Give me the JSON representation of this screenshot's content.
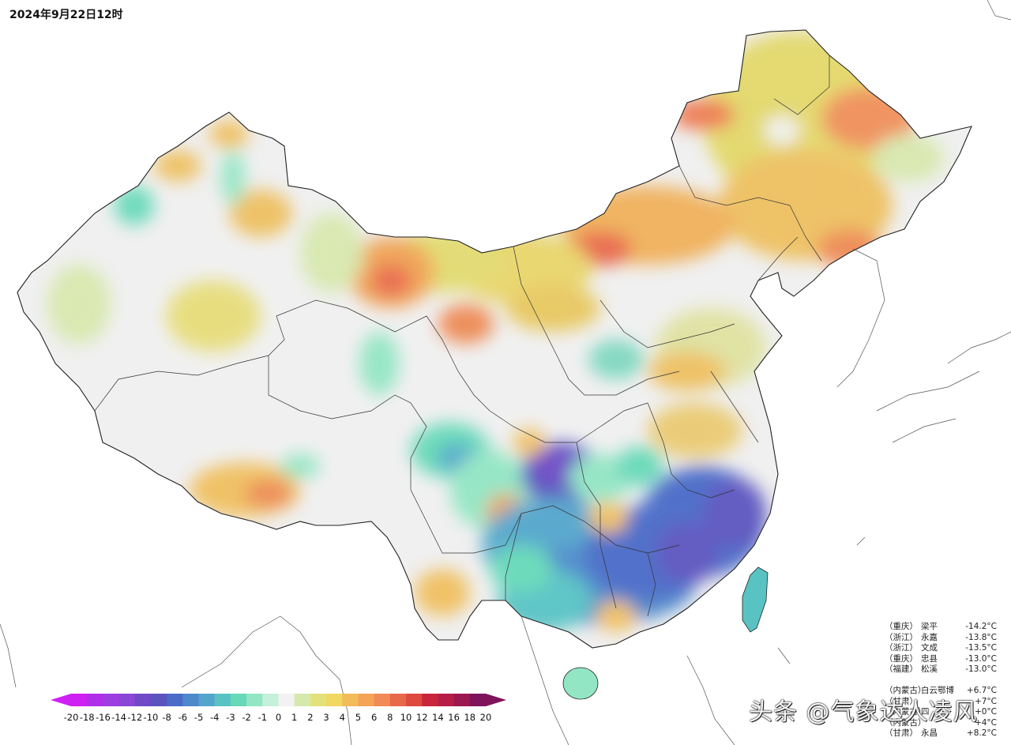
{
  "header": {
    "timestamp": "2024年9月22日12时"
  },
  "legend": {
    "ticks": [
      "-20",
      "-18",
      "-16",
      "-14",
      "-12",
      "-10",
      "-8",
      "-6",
      "-5",
      "-4",
      "-3",
      "-2",
      "-1",
      "0",
      "1",
      "2",
      "3",
      "4",
      "5",
      "6",
      "8",
      "10",
      "12",
      "14",
      "16",
      "18",
      "20"
    ],
    "colors": [
      "#cf20f4",
      "#b12ee9",
      "#9d3ee0",
      "#8a46d6",
      "#6f49c6",
      "#5b54bf",
      "#4a6bc8",
      "#4e89cc",
      "#52a6cc",
      "#59c3c4",
      "#66d9b8",
      "#93e6c4",
      "#c5f0d9",
      "#f2f2f2",
      "#d7e8ad",
      "#e3e27a",
      "#f0d862",
      "#f2bc58",
      "#f4a456",
      "#f18a55",
      "#e8684b",
      "#de4940",
      "#c8263a",
      "#b51e46",
      "#9c1850",
      "#801359"
    ]
  },
  "stats_low": [
    {
      "prov": "（重庆）",
      "name": "梁平",
      "val": "-14.2°C"
    },
    {
      "prov": "（浙江）",
      "name": "永嘉",
      "val": "-13.8°C"
    },
    {
      "prov": "（浙江）",
      "name": "文成",
      "val": "-13.5°C"
    },
    {
      "prov": "（重庆）",
      "name": "忠县",
      "val": "-13.0°C"
    },
    {
      "prov": "（福建）",
      "name": "松溪",
      "val": "-13.0°C"
    }
  ],
  "stats_high": [
    {
      "prov": "（内蒙古）",
      "name": "白云鄂博",
      "val": "+6.7°C"
    },
    {
      "prov": "（甘肃）",
      "name": "",
      "val": "+7°C"
    },
    {
      "prov": "（内蒙古）",
      "name": "四",
      "val": "+0°C"
    },
    {
      "prov": "（内蒙古）",
      "name": "",
      "val": "+4°C"
    },
    {
      "prov": "（甘肃）",
      "name": "永昌",
      "val": "+8.2°C"
    }
  ],
  "watermark": "头条 @气象达人凌风"
}
